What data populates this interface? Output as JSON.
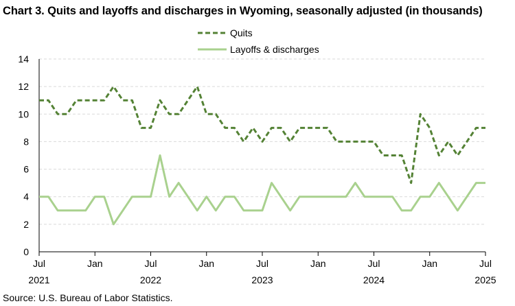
{
  "chart_data": {
    "type": "line",
    "title": "Chart 3. Quits and layoffs and discharges in Wyoming, seasonally adjusted (in thousands)",
    "source": "Source: U.S. Bureau of Labor Statistics.",
    "xlabel": "",
    "ylabel": "",
    "ylim": [
      0,
      14
    ],
    "yticks": [
      0,
      2,
      4,
      6,
      8,
      10,
      12,
      14
    ],
    "x_start": "2021-07",
    "x_end": "2025-07",
    "xticks": [
      {
        "month": "Jul",
        "year": "2021"
      },
      {
        "month": "Jan",
        "year": ""
      },
      {
        "month": "Jul",
        "year": "2022"
      },
      {
        "month": "Jan",
        "year": ""
      },
      {
        "month": "Jul",
        "year": "2023"
      },
      {
        "month": "Jan",
        "year": ""
      },
      {
        "month": "Jul",
        "year": "2024"
      },
      {
        "month": "Jan",
        "year": ""
      },
      {
        "month": "Jul",
        "year": "2025"
      }
    ],
    "grid": true,
    "legend_position": "top-center",
    "series": [
      {
        "name": "Quits",
        "color": "#548235",
        "style": "dashed",
        "values": [
          11,
          11,
          10,
          10,
          11,
          11,
          11,
          11,
          12,
          11,
          11,
          9,
          9,
          11,
          10,
          10,
          11,
          12,
          10,
          10,
          9,
          9,
          8,
          9,
          8,
          9,
          9,
          8,
          9,
          9,
          9,
          9,
          8,
          8,
          8,
          8,
          8,
          7,
          7,
          7,
          5,
          10,
          9,
          7,
          8,
          7,
          8,
          9,
          9
        ]
      },
      {
        "name": "Layoffs & discharges",
        "color": "#a9d18e",
        "style": "solid",
        "values": [
          4,
          4,
          3,
          3,
          3,
          3,
          4,
          4,
          2,
          3,
          4,
          4,
          4,
          7,
          4,
          5,
          4,
          3,
          4,
          3,
          4,
          4,
          3,
          3,
          3,
          5,
          4,
          3,
          4,
          4,
          4,
          4,
          4,
          4,
          5,
          4,
          4,
          4,
          4,
          3,
          3,
          4,
          4,
          5,
          4,
          3,
          4,
          5,
          5
        ]
      }
    ]
  }
}
